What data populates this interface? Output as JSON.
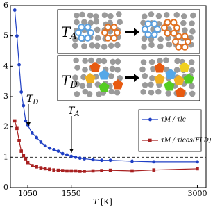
{
  "chart_data": {
    "type": "line",
    "x_label": {
      "main": "T",
      "unit": "[K]"
    },
    "x": [
      900,
      925,
      950,
      975,
      1000,
      1025,
      1050,
      1100,
      1150,
      1200,
      1250,
      1300,
      1350,
      1400,
      1450,
      1500,
      1550,
      1600,
      1650,
      1700,
      1800,
      1900,
      2000,
      2250,
      2500,
      3000
    ],
    "series": [
      {
        "name": "τM / τlc",
        "color": "#1f3fc4",
        "marker": "circle",
        "values": [
          5.85,
          5.0,
          4.05,
          3.15,
          2.7,
          2.2,
          2.05,
          1.8,
          1.65,
          1.5,
          1.38,
          1.3,
          1.25,
          1.2,
          1.12,
          1.08,
          1.03,
          1.0,
          0.97,
          0.95,
          0.92,
          0.9,
          0.9,
          0.87,
          0.85,
          0.85
        ]
      },
      {
        "name": "τM / τicos(FLD)",
        "color": "#a82020",
        "marker": "square",
        "values": [
          2.2,
          1.95,
          1.55,
          1.2,
          1.05,
          0.95,
          0.82,
          0.72,
          0.68,
          0.65,
          0.62,
          0.6,
          0.58,
          0.57,
          0.56,
          0.55,
          0.55,
          0.55,
          0.54,
          0.54,
          0.55,
          0.56,
          0.57,
          0.55,
          0.58,
          0.62
        ]
      }
    ],
    "xlim": [
      850,
      3100
    ],
    "xticks": [
      1050,
      1550,
      3000
    ],
    "ylim": [
      0,
      6
    ],
    "yticks": [
      0,
      1,
      2,
      3,
      4,
      5,
      6
    ],
    "reference_line": 1,
    "annotations": [
      {
        "main": "T",
        "sub": "D"
      },
      {
        "main": "T",
        "sub": "A"
      }
    ],
    "inset_labels": [
      {
        "main": "T",
        "sub": "A"
      },
      {
        "main": "T",
        "sub": "D"
      }
    ],
    "legend": "lower right"
  }
}
